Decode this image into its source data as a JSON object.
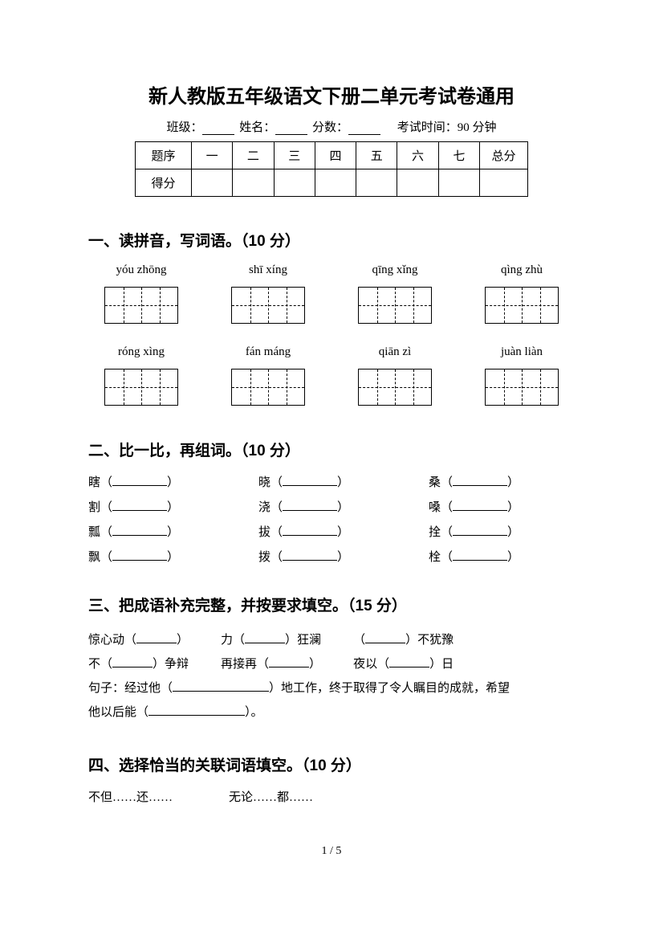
{
  "title": "新人教版五年级语文下册二单元考试卷通用",
  "info": {
    "class_label": "班级：",
    "name_label": "姓名：",
    "score_label": "分数：",
    "exam_time_label": "考试时间：90 分钟"
  },
  "score_table": {
    "row1": [
      "题序",
      "一",
      "二",
      "三",
      "四",
      "五",
      "六",
      "七",
      "总分"
    ],
    "row2_label": "得分"
  },
  "section1": {
    "heading": "一、读拼音，写词语。（10 分）",
    "row1": [
      "yóu zhōng",
      "shī xíng",
      "qīng xǐng",
      "qìng zhù"
    ],
    "row2": [
      "róng xìng",
      "fán máng",
      "qiān zì",
      "juàn liàn"
    ]
  },
  "section2": {
    "heading": "二、比一比，再组词。（10 分）",
    "rows": [
      [
        "瞎",
        "晓",
        "桑"
      ],
      [
        "割",
        "浇",
        "嗓"
      ],
      [
        "瓢",
        "拔",
        "拴"
      ],
      [
        "飘",
        "拨",
        "栓"
      ]
    ]
  },
  "section3": {
    "heading": "三、把成语补充完整，并按要求填空。（15 分）",
    "line1": {
      "a_pre": "惊心动（",
      "a_post": "）",
      "b_pre": "力（",
      "b_mid": "）狂澜",
      "c_pre": "（",
      "c_post": "）不犹豫"
    },
    "line2": {
      "a_pre": "不（",
      "a_post": "）争辩",
      "b_pre": "再接再（",
      "b_post": "）",
      "c_pre": "夜以（",
      "c_post": "）日"
    },
    "line3_pre": "句子：经过他（",
    "line3_mid": "）地工作，终于取得了令人瞩目的成就，希望",
    "line4_pre": "他以后能（",
    "line4_post": "）。"
  },
  "section4": {
    "heading": "四、选择恰当的关联词语填空。（10 分）",
    "w1": "不但……还……",
    "w2": "无论……都……"
  },
  "page_number": "1 / 5"
}
